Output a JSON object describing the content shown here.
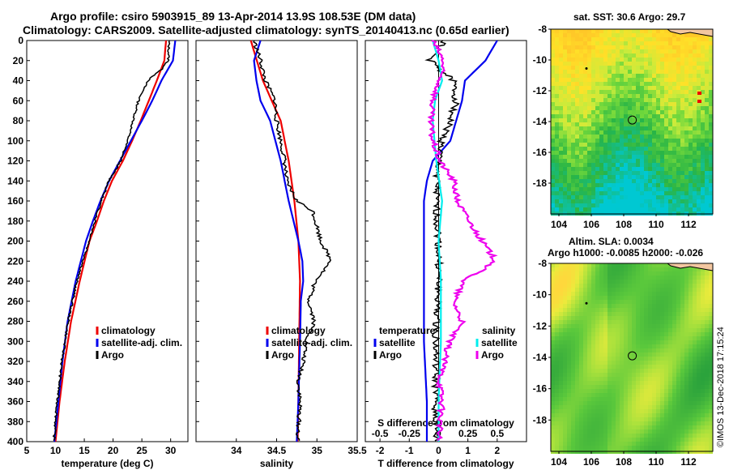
{
  "header": {
    "line1": "Argo profile: csiro 5903915_89 13-Apr-2014 13.9S 108.53E (DM data)",
    "line2": "Climatology: CARS2009. Satellite-adjusted climatology: synTS_20140413.nc (0.65d earlier)"
  },
  "map_top": {
    "title": "sat. SST: 30.6 Argo: 29.7",
    "y_ticks": [
      "-8",
      "-10",
      "-12",
      "-14",
      "-16",
      "-18"
    ],
    "x_ticks": [
      "104",
      "106",
      "108",
      "110",
      "112"
    ]
  },
  "map_bottom": {
    "title_line1": "Altim. SLA: 0.0034",
    "title_line2": "Argo h1000: -0.0085 h2000: -0.026",
    "y_ticks": [
      "-8",
      "-10",
      "-12",
      "-14",
      "-16",
      "-18"
    ],
    "x_ticks": [
      "104",
      "106",
      "108",
      "110",
      "112"
    ]
  },
  "credit": "©IMOS 13-Dec-2018 17:15:24",
  "colors": {
    "climatology": "#ee0000",
    "satellite": "#0000ee",
    "argo": "#000000",
    "salinity_diff": "#ee00ee",
    "temperature_diff": "#00eeee",
    "land": "#f3c7a0"
  },
  "chart_data": [
    {
      "type": "line",
      "title": "temperature profile",
      "xlabel": "temperature (deg C)",
      "ylabel": "",
      "xlim": [
        5,
        33
      ],
      "ylim": [
        400,
        0
      ],
      "x_ticks": [
        "5",
        "10",
        "15",
        "20",
        "25",
        "30"
      ],
      "y_ticks": [
        "0",
        "20",
        "40",
        "60",
        "80",
        "100",
        "120",
        "140",
        "160",
        "180",
        "200",
        "220",
        "240",
        "260",
        "280",
        "300",
        "320",
        "340",
        "360",
        "380",
        "400"
      ],
      "legend": [
        "climatology",
        "satellite-adj. clim.",
        "Argo"
      ],
      "series": [
        {
          "name": "climatology",
          "depth": [
            0,
            20,
            40,
            60,
            80,
            100,
            120,
            140,
            160,
            180,
            200,
            240,
            280,
            320,
            360,
            400
          ],
          "values": [
            29.2,
            28.9,
            27.6,
            26.2,
            24.8,
            23.3,
            21.7,
            19.8,
            18.4,
            17.2,
            15.9,
            14.2,
            12.7,
            11.6,
            10.7,
            10.0
          ]
        },
        {
          "name": "satellite-adj. clim.",
          "depth": [
            0,
            20,
            40,
            60,
            80,
            100,
            120,
            140,
            160,
            180,
            200,
            240,
            280,
            320,
            360,
            400
          ],
          "values": [
            30.8,
            30.4,
            28.4,
            26.8,
            25.0,
            23.1,
            21.2,
            19.3,
            17.8,
            16.5,
            15.3,
            13.5,
            12.1,
            11.2,
            10.5,
            9.8
          ]
        },
        {
          "name": "Argo",
          "depth": [
            0,
            20,
            30,
            40,
            60,
            80,
            100,
            120,
            140,
            160,
            180,
            200,
            240,
            280,
            320,
            360,
            400
          ],
          "values": [
            29.7,
            29.6,
            28.2,
            26.0,
            24.4,
            23.5,
            22.5,
            21.3,
            19.3,
            17.9,
            16.9,
            15.9,
            13.7,
            12.2,
            11.1,
            10.3,
            9.7
          ]
        }
      ]
    },
    {
      "type": "line",
      "title": "salinity profile",
      "xlabel": "salinity",
      "ylabel": "",
      "xlim": [
        33.5,
        35.5
      ],
      "ylim": [
        400,
        0
      ],
      "x_ticks": [
        "34",
        "34.5",
        "35",
        "35.5"
      ],
      "legend": [
        "climatology",
        "satellite-adj. clim.",
        "Argo"
      ],
      "series": [
        {
          "name": "climatology",
          "depth": [
            0,
            40,
            80,
            120,
            160,
            200,
            240,
            300,
            360,
            400
          ],
          "values": [
            34.18,
            34.33,
            34.55,
            34.65,
            34.72,
            34.77,
            34.79,
            34.78,
            34.77,
            34.76
          ]
        },
        {
          "name": "satellite-adj. clim.",
          "depth": [
            0,
            20,
            40,
            60,
            80,
            120,
            160,
            200,
            220,
            240,
            260,
            300,
            360,
            400
          ],
          "values": [
            34.3,
            34.22,
            34.25,
            34.3,
            34.42,
            34.55,
            34.65,
            34.77,
            34.82,
            34.83,
            34.8,
            34.79,
            34.77,
            34.75
          ]
        },
        {
          "name": "Argo",
          "depth": [
            0,
            20,
            40,
            60,
            80,
            100,
            120,
            140,
            160,
            170,
            200,
            220,
            240,
            260,
            280,
            300,
            320,
            340,
            360,
            400
          ],
          "values": [
            34.22,
            34.3,
            34.36,
            34.48,
            34.5,
            34.55,
            34.6,
            34.62,
            34.75,
            34.95,
            35.05,
            35.18,
            34.98,
            34.9,
            34.97,
            34.87,
            34.83,
            34.77,
            34.79,
            34.76
          ]
        }
      ]
    },
    {
      "type": "line",
      "title": "difference from climatology",
      "xlabel": "T difference from climatology",
      "x2label": "S difference from climatology",
      "ylabel": "",
      "xlim": [
        -2.5,
        3
      ],
      "x2lim": [
        -0.625,
        0.75
      ],
      "ylim": [
        400,
        0
      ],
      "x_ticks": [
        "-2",
        "-1",
        "0",
        "1",
        "2"
      ],
      "x2_ticks": [
        "-0.5",
        "-0.25",
        "0",
        "0.25",
        "0.5"
      ],
      "legend_left": {
        "title": "temperature",
        "items": [
          "satellite",
          "Argo"
        ]
      },
      "legend_right": {
        "title": "salinity",
        "items": [
          "satellite",
          "Argo"
        ]
      },
      "series": [
        {
          "name": "temperature satellite",
          "depth": [
            0,
            20,
            40,
            60,
            80,
            100,
            120,
            140,
            160,
            200,
            240,
            300,
            360,
            400
          ],
          "values": [
            2.0,
            1.6,
            0.9,
            0.8,
            0.6,
            0.4,
            -0.2,
            -0.4,
            -0.5,
            -0.5,
            -0.5,
            -0.5,
            -0.4,
            -0.4
          ]
        },
        {
          "name": "temperature Argo",
          "depth": [
            0,
            20,
            40,
            60,
            80,
            100,
            120,
            160,
            200,
            240,
            300,
            360,
            400
          ],
          "values": [
            0.2,
            -0.3,
            0.5,
            0.6,
            0.4,
            0.1,
            0.0,
            -0.1,
            0.0,
            0.0,
            -0.1,
            -0.1,
            -0.1
          ]
        },
        {
          "name": "salinity satellite",
          "depth": [
            0,
            20,
            40,
            60,
            80,
            120,
            160,
            200,
            240,
            300,
            360,
            400
          ],
          "values": [
            -0.05,
            0.0,
            0.03,
            -0.03,
            -0.05,
            -0.02,
            0.03,
            0.0,
            0.02,
            0.02,
            0.0,
            0.0
          ]
        },
        {
          "name": "salinity Argo",
          "depth": [
            0,
            20,
            40,
            60,
            80,
            100,
            120,
            140,
            160,
            180,
            200,
            220,
            240,
            260,
            280,
            300,
            320,
            340,
            360,
            400
          ],
          "values": [
            -0.05,
            0.04,
            0.01,
            -0.05,
            -0.07,
            -0.05,
            0.01,
            0.13,
            0.16,
            0.26,
            0.37,
            0.49,
            0.21,
            0.13,
            0.2,
            0.09,
            0.05,
            0.01,
            0.03,
            0.0
          ]
        }
      ]
    }
  ]
}
